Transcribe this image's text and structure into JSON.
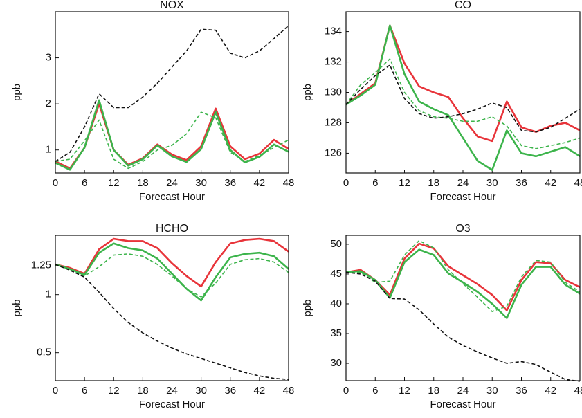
{
  "chart_data": [
    {
      "type": "line",
      "title": "NOX",
      "xlabel": "Forecast Hour",
      "ylabel": "ppb",
      "x": [
        0,
        3,
        6,
        9,
        12,
        15,
        18,
        21,
        24,
        27,
        30,
        33,
        36,
        39,
        42,
        45,
        48
      ],
      "xlim": [
        0,
        48
      ],
      "xticks": [
        0,
        6,
        12,
        18,
        24,
        30,
        36,
        42,
        48
      ],
      "ylim": [
        0.5,
        4.0
      ],
      "yticks": [
        1,
        2,
        3
      ],
      "series": [
        {
          "color": "#e8343a",
          "style": "solid",
          "values": [
            0.75,
            0.6,
            1.05,
            2.0,
            1.0,
            0.68,
            0.82,
            1.12,
            0.9,
            0.78,
            1.08,
            1.9,
            1.08,
            0.8,
            0.92,
            1.22,
            1.02
          ]
        },
        {
          "color": "#3cb44b",
          "style": "solid",
          "values": [
            0.72,
            0.57,
            1.05,
            2.08,
            1.0,
            0.66,
            0.8,
            1.1,
            0.86,
            0.74,
            1.02,
            1.82,
            1.0,
            0.73,
            0.85,
            1.12,
            0.96
          ]
        },
        {
          "color": "#3cb44b",
          "style": "dashed",
          "values": [
            0.75,
            0.8,
            1.2,
            1.65,
            0.8,
            0.6,
            0.75,
            1.0,
            1.1,
            1.35,
            1.82,
            1.7,
            0.95,
            0.75,
            0.88,
            1.05,
            1.22
          ]
        },
        {
          "color": "#111111",
          "style": "dashed",
          "values": [
            0.75,
            0.95,
            1.5,
            2.22,
            1.92,
            1.92,
            2.15,
            2.45,
            2.8,
            3.15,
            3.62,
            3.6,
            3.1,
            3.0,
            3.15,
            3.42,
            3.7
          ]
        }
      ]
    },
    {
      "type": "line",
      "title": "CO",
      "xlabel": "Forecast Hour",
      "ylabel": "ppb",
      "x": [
        0,
        3,
        6,
        9,
        12,
        15,
        18,
        21,
        24,
        27,
        30,
        33,
        36,
        39,
        42,
        45,
        48
      ],
      "xlim": [
        0,
        48
      ],
      "xticks": [
        0,
        6,
        12,
        18,
        24,
        30,
        36,
        42,
        48
      ],
      "ylim": [
        124.7,
        135.3
      ],
      "yticks": [
        126,
        128,
        130,
        132,
        134
      ],
      "series": [
        {
          "color": "#e8343a",
          "style": "solid",
          "values": [
            129.2,
            129.9,
            130.6,
            134.4,
            131.9,
            130.4,
            130.0,
            129.7,
            128.3,
            127.1,
            126.8,
            129.4,
            127.7,
            127.4,
            127.8,
            128.0,
            127.5
          ]
        },
        {
          "color": "#3cb44b",
          "style": "solid",
          "values": [
            129.2,
            129.8,
            130.5,
            134.4,
            131.2,
            129.4,
            128.9,
            128.5,
            127.0,
            125.5,
            124.9,
            127.5,
            126.0,
            125.8,
            126.1,
            126.4,
            125.8
          ]
        },
        {
          "color": "#3cb44b",
          "style": "dashed",
          "values": [
            129.2,
            130.5,
            131.3,
            132.2,
            130.0,
            128.8,
            128.4,
            128.3,
            128.1,
            128.1,
            128.4,
            127.8,
            126.5,
            126.3,
            126.5,
            126.7,
            127.0
          ]
        },
        {
          "color": "#111111",
          "style": "dashed",
          "values": [
            129.2,
            130.2,
            131.1,
            131.8,
            129.6,
            128.6,
            128.3,
            128.4,
            128.6,
            128.9,
            129.3,
            129.0,
            127.5,
            127.4,
            127.7,
            128.3,
            128.9
          ]
        }
      ]
    },
    {
      "type": "line",
      "title": "HCHO",
      "xlabel": "Forecast Hour",
      "ylabel": "ppb",
      "x": [
        0,
        3,
        6,
        9,
        12,
        15,
        18,
        21,
        24,
        27,
        30,
        33,
        36,
        39,
        42,
        45,
        48
      ],
      "xlim": [
        0,
        48
      ],
      "xticks": [
        0,
        6,
        12,
        18,
        24,
        30,
        36,
        42,
        48
      ],
      "ylim": [
        0.26,
        1.51
      ],
      "yticks": [
        0.5,
        1,
        1.25
      ],
      "series": [
        {
          "color": "#e8343a",
          "style": "solid",
          "values": [
            1.26,
            1.23,
            1.18,
            1.39,
            1.48,
            1.46,
            1.46,
            1.4,
            1.27,
            1.16,
            1.07,
            1.28,
            1.44,
            1.47,
            1.48,
            1.46,
            1.37
          ]
        },
        {
          "color": "#3cb44b",
          "style": "solid",
          "values": [
            1.26,
            1.22,
            1.17,
            1.36,
            1.44,
            1.4,
            1.38,
            1.31,
            1.18,
            1.05,
            0.95,
            1.15,
            1.32,
            1.35,
            1.36,
            1.33,
            1.22
          ]
        },
        {
          "color": "#3cb44b",
          "style": "dashed",
          "values": [
            1.26,
            1.21,
            1.16,
            1.24,
            1.34,
            1.35,
            1.33,
            1.26,
            1.16,
            1.05,
            0.98,
            1.1,
            1.26,
            1.3,
            1.31,
            1.28,
            1.19
          ]
        },
        {
          "color": "#111111",
          "style": "dashed",
          "values": [
            1.26,
            1.21,
            1.15,
            1.02,
            0.88,
            0.76,
            0.67,
            0.6,
            0.54,
            0.49,
            0.45,
            0.41,
            0.37,
            0.33,
            0.3,
            0.28,
            0.27
          ]
        }
      ]
    },
    {
      "type": "line",
      "title": "O3",
      "xlabel": "Forecast Hour",
      "ylabel": "ppb",
      "x": [
        0,
        3,
        6,
        9,
        12,
        15,
        18,
        21,
        24,
        27,
        30,
        33,
        36,
        39,
        42,
        45,
        48
      ],
      "xlim": [
        0,
        48
      ],
      "xticks": [
        0,
        6,
        12,
        18,
        24,
        30,
        36,
        42,
        48
      ],
      "ylim": [
        27.1,
        51.5
      ],
      "yticks": [
        30,
        35,
        40,
        45,
        50
      ],
      "series": [
        {
          "color": "#e8343a",
          "style": "solid",
          "values": [
            45.3,
            45.7,
            44.0,
            41.5,
            47.6,
            50.1,
            49.3,
            46.3,
            44.8,
            43.3,
            41.5,
            38.9,
            44.0,
            47.0,
            46.8,
            44.0,
            42.8
          ]
        },
        {
          "color": "#3cb44b",
          "style": "solid",
          "values": [
            45.3,
            45.5,
            44.0,
            41.0,
            47.0,
            49.1,
            48.2,
            45.1,
            43.6,
            42.0,
            40.0,
            37.6,
            43.2,
            46.2,
            46.2,
            43.2,
            41.7
          ]
        },
        {
          "color": "#3cb44b",
          "style": "dashed",
          "values": [
            45.3,
            45.3,
            43.6,
            43.8,
            48.2,
            50.6,
            49.4,
            45.7,
            43.4,
            41.1,
            38.7,
            39.6,
            44.5,
            47.3,
            47.0,
            43.6,
            42.0
          ]
        },
        {
          "color": "#111111",
          "style": "dashed",
          "values": [
            45.3,
            45.0,
            43.8,
            40.9,
            40.8,
            39.0,
            36.6,
            34.4,
            33.0,
            31.9,
            30.9,
            30.0,
            30.3,
            29.8,
            28.5,
            27.3,
            27.0
          ]
        }
      ]
    }
  ]
}
